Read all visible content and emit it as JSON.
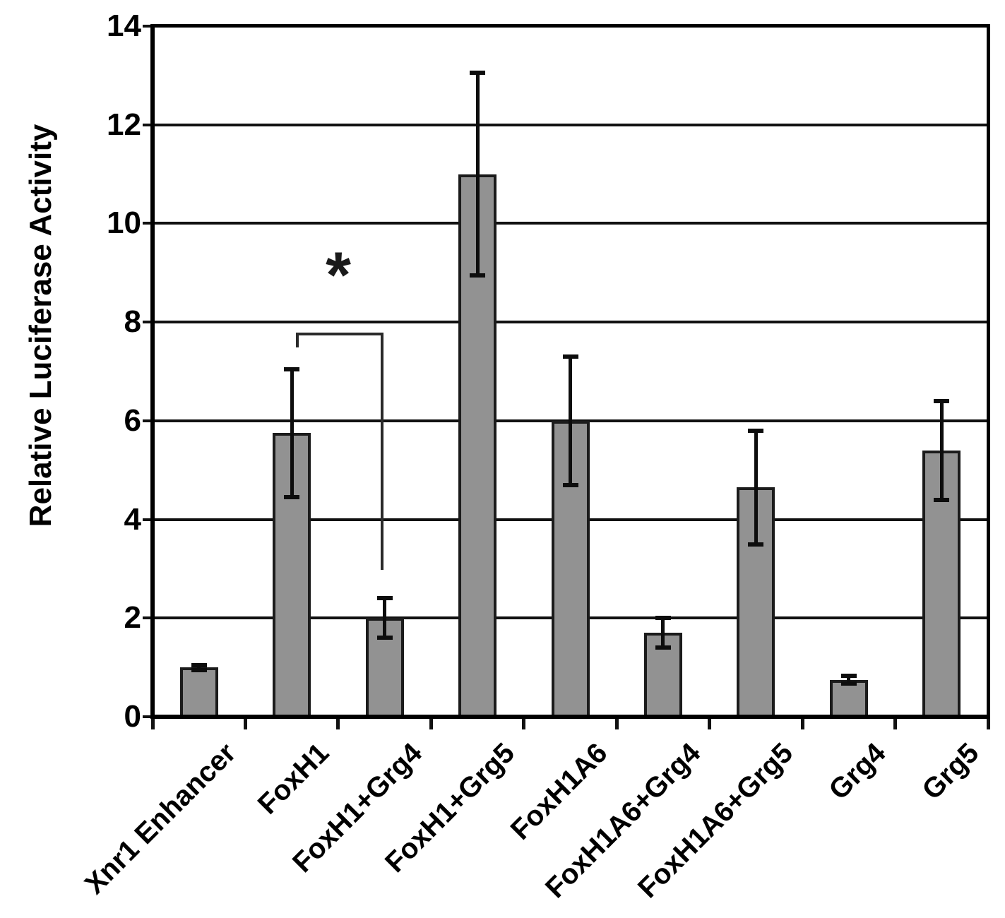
{
  "figure": {
    "significance": {
      "symbol": "*",
      "compares": [
        "FoxH1",
        "FoxH1+Grg4"
      ]
    }
  },
  "chart_data": {
    "type": "bar",
    "title": "",
    "xlabel": "",
    "ylabel": "Relative Luciferase Activity",
    "ylim": [
      0,
      14
    ],
    "yticks": [
      "0",
      "2",
      "4",
      "6",
      "8",
      "10",
      "12",
      "14"
    ],
    "grid": true,
    "legend": false,
    "bar_color": "#929292",
    "bar_border_color": "#1b1b1b",
    "categories": [
      "Xnr1 Enhancer",
      "FoxH1",
      "FoxH1+Grg4",
      "FoxH1+Grg5",
      "FoxH1A6",
      "FoxH1A6+Grg4",
      "FoxH1A6+Grg5",
      "Grg4",
      "Grg5"
    ],
    "values": [
      1.0,
      5.75,
      2.0,
      11.0,
      6.0,
      1.7,
      4.65,
      0.75,
      5.4
    ],
    "errors": [
      0.05,
      1.3,
      0.4,
      2.05,
      1.3,
      0.3,
      1.15,
      0.08,
      1.0
    ],
    "annotation": {
      "symbol": "*",
      "between": [
        "FoxH1",
        "FoxH1+Grg4"
      ]
    }
  }
}
